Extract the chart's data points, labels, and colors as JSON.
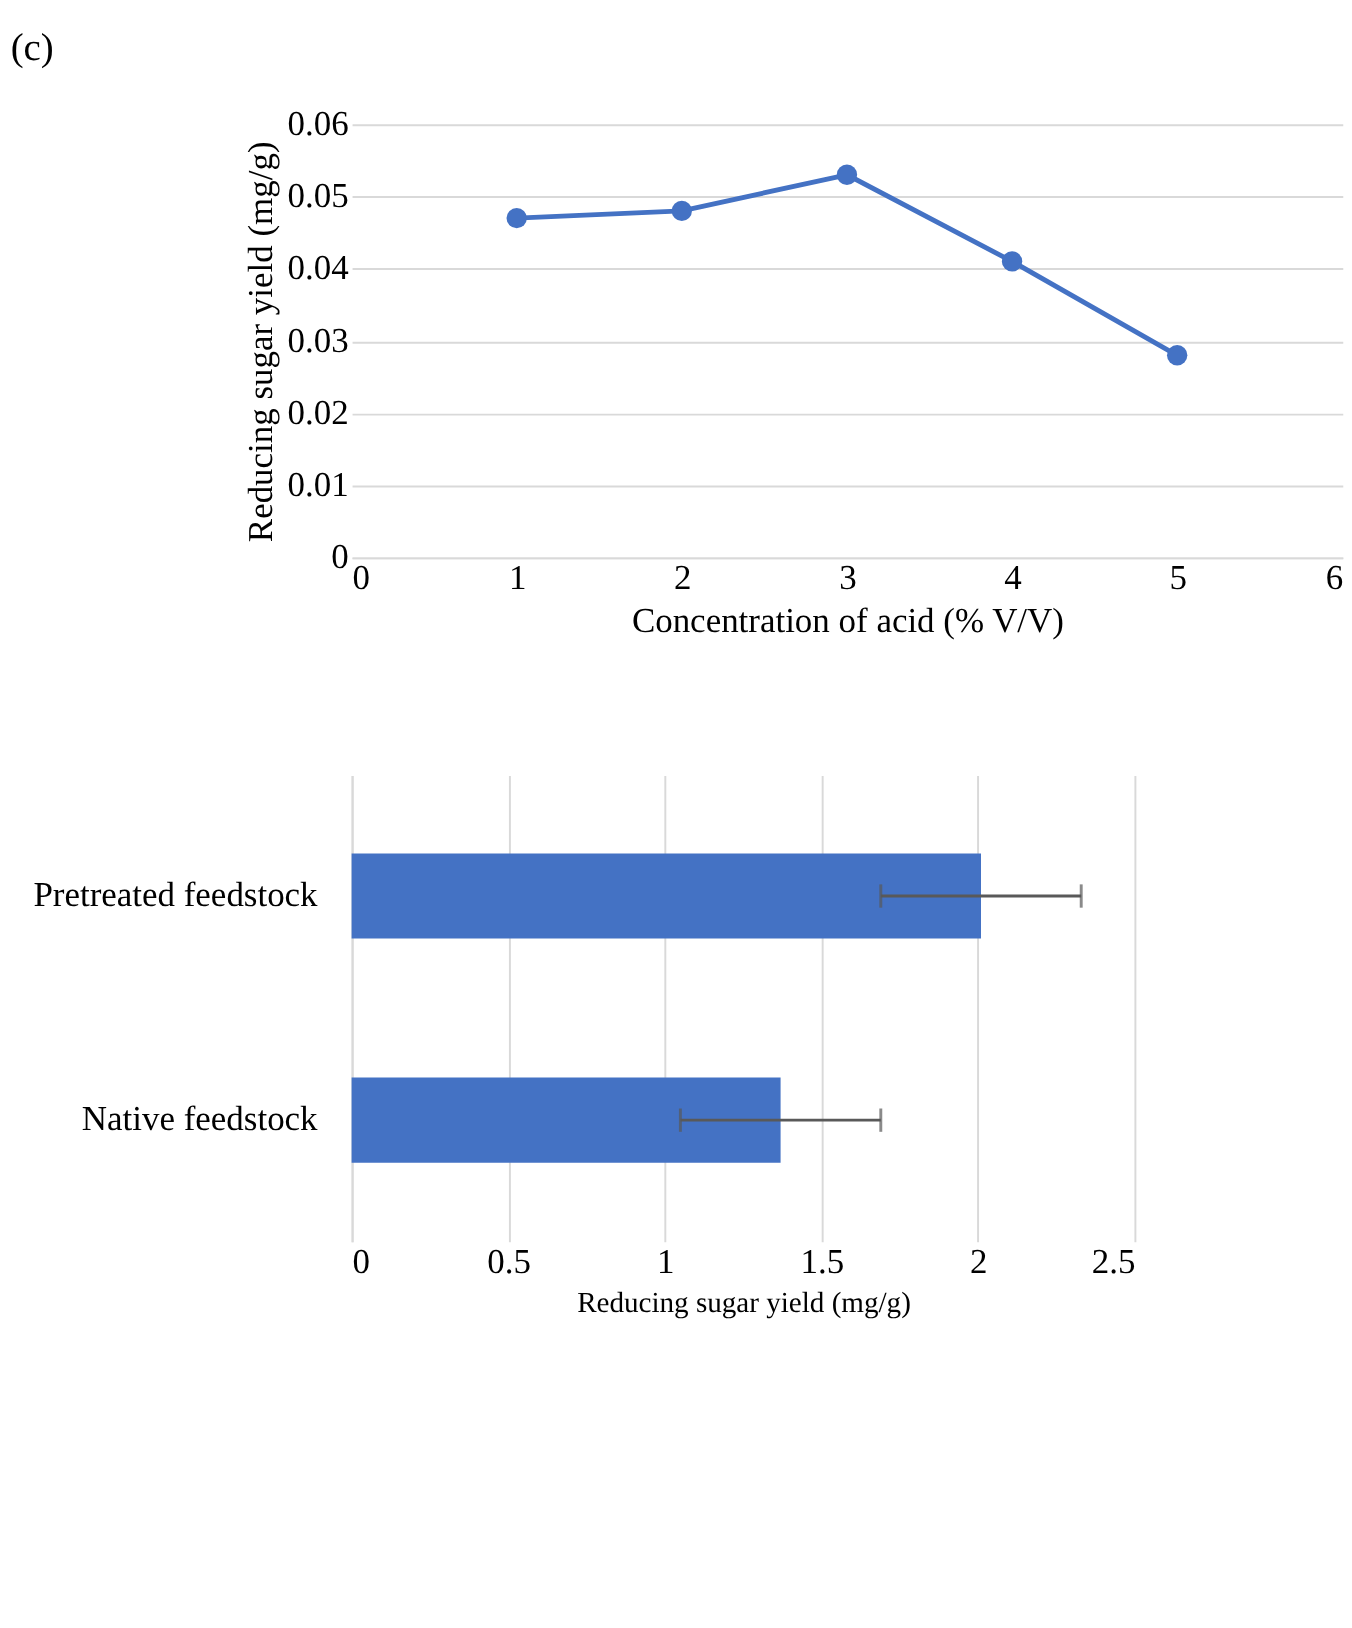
{
  "chart_data": [
    {
      "type": "line",
      "annotations": [
        "(c)"
      ],
      "xlabel": "Concentration of acid (% V/V)",
      "ylabel": "Reducing sugar yield (mg/g)",
      "x": [
        1,
        2,
        3,
        4,
        5
      ],
      "series": [
        {
          "color": "#4472c4",
          "values": [
            0.047,
            0.048,
            0.053,
            0.041,
            0.028
          ]
        }
      ],
      "xlim": [
        0,
        6
      ],
      "xticks": [
        0,
        1,
        2,
        3,
        4,
        5,
        6
      ],
      "ylim": [
        0,
        0.06
      ],
      "yticks": [
        0,
        0.01,
        0.02,
        0.03,
        0.04,
        0.05,
        0.06
      ],
      "grid": "y",
      "marker": "circle",
      "line_style": "solid",
      "legend": false
    },
    {
      "type": "bar",
      "orientation": "horizontal",
      "xlabel": "Reducing sugar yield (mg/g)",
      "categories": [
        "Pretreated feedstock",
        "Native feedstock"
      ],
      "series": [
        {
          "color": "#4472c4",
          "values": [
            2.01,
            1.37
          ],
          "errors": [
            0.32,
            0.32
          ]
        }
      ],
      "xlim": [
        0,
        2.5
      ],
      "xticks": [
        0,
        0.5,
        1,
        1.5,
        2,
        2.5
      ],
      "grid": "x",
      "legend": false
    }
  ]
}
